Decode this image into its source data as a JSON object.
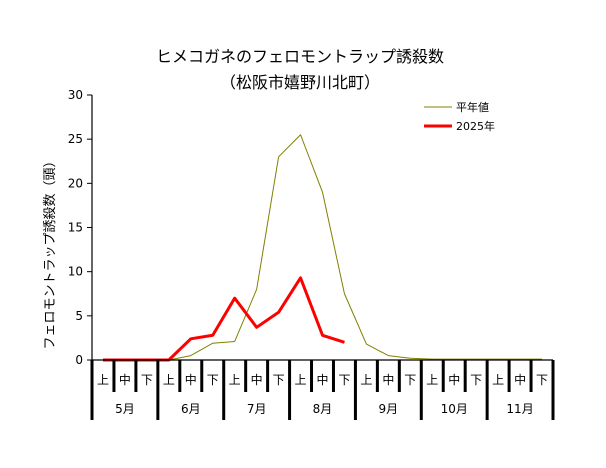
{
  "chart_data": {
    "type": "line",
    "title": "ヒメコガネのフェロモントラップ誘殺数",
    "subtitle": "（松阪市嬉野川北町）",
    "ylabel": "フェロモントラップ誘殺数（頭）",
    "xlabel": "",
    "ylim": [
      0,
      30
    ],
    "yticks": [
      0,
      5,
      10,
      15,
      20,
      25,
      30
    ],
    "grid": false,
    "legend_position": "top-right",
    "categories": [
      "上",
      "中",
      "下",
      "上",
      "中",
      "下",
      "上",
      "中",
      "下",
      "上",
      "中",
      "下",
      "上",
      "中",
      "下",
      "上",
      "中",
      "下",
      "上",
      "中",
      "下"
    ],
    "months": [
      "5月",
      "6月",
      "7月",
      "8月",
      "9月",
      "10月",
      "11月"
    ],
    "series": [
      {
        "name": "平年値",
        "color": "#808000",
        "values": [
          0,
          0,
          0,
          0,
          0.5,
          1.9,
          2.1,
          8.0,
          23.0,
          25.5,
          19.0,
          7.5,
          1.8,
          0.5,
          0.2,
          0.1,
          0.1,
          0.1,
          0.1,
          0.1,
          0.1
        ]
      },
      {
        "name": "2025年",
        "color": "#ff0000",
        "values": [
          0,
          0,
          0,
          0,
          2.4,
          2.8,
          7.0,
          3.7,
          5.4,
          9.3,
          2.8,
          2.0,
          null,
          null,
          null,
          null,
          null,
          null,
          null,
          null,
          null
        ]
      }
    ]
  }
}
